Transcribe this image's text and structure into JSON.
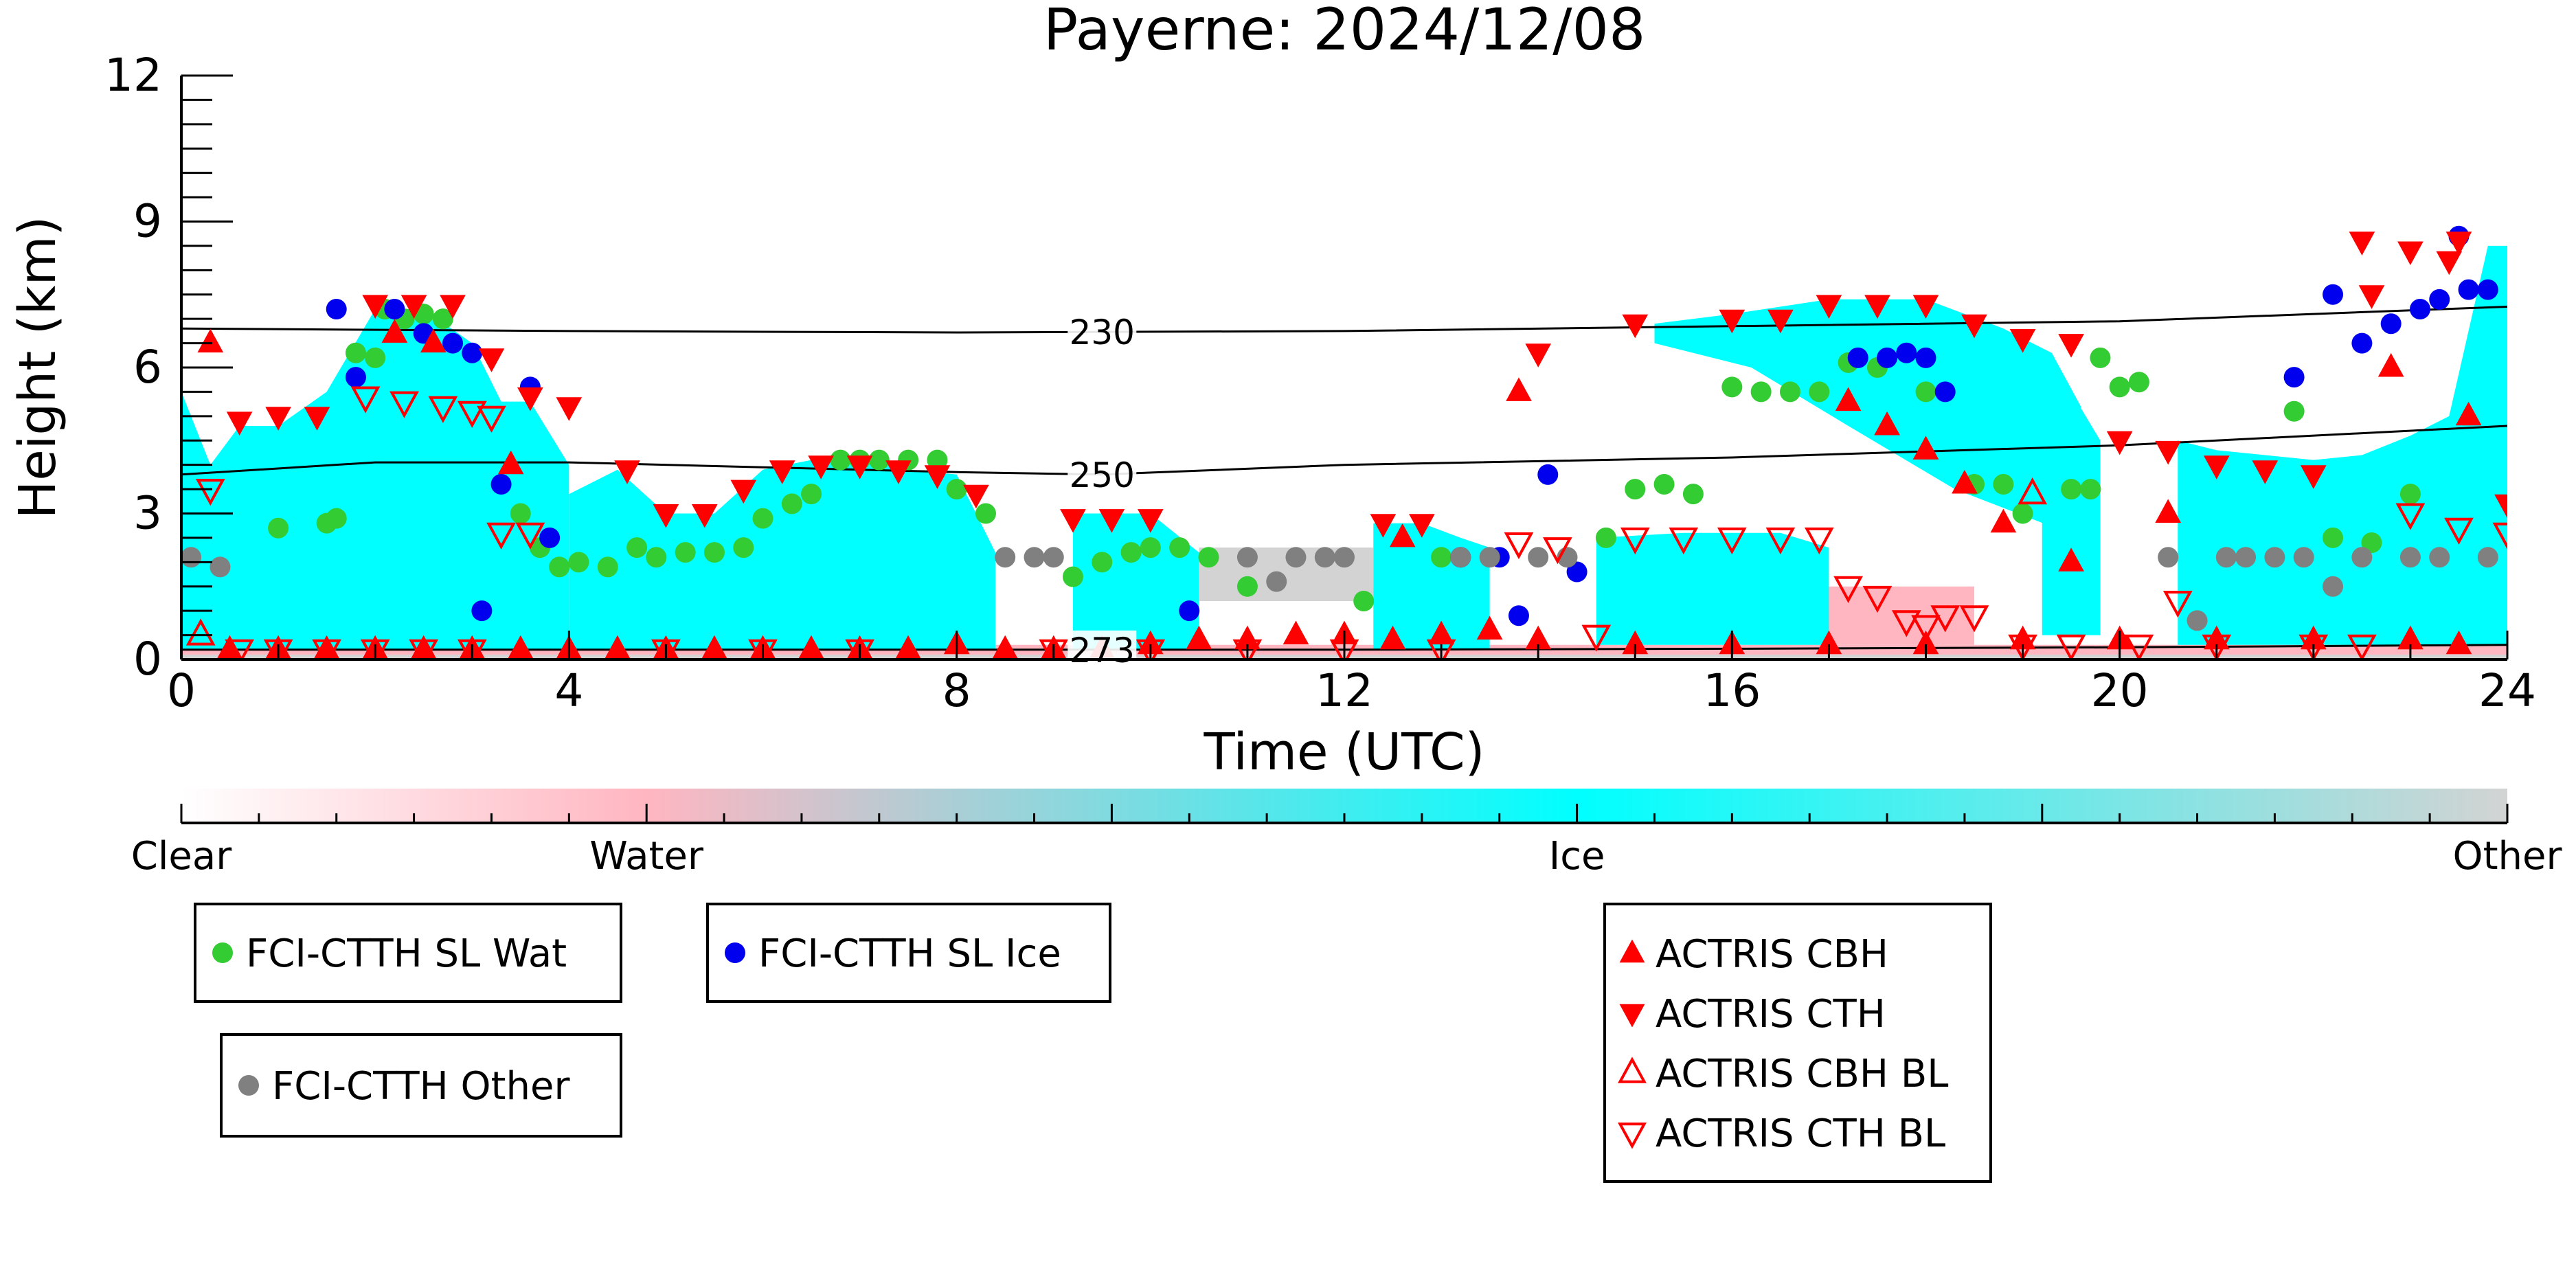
{
  "chart_data": {
    "type": "scatter",
    "title": "Payerne: 2024/12/08",
    "xlabel": "Time (UTC)",
    "ylabel": "Height (km)",
    "xlim": [
      0,
      24
    ],
    "ylim": [
      0,
      12
    ],
    "xticks": [
      0,
      4,
      8,
      12,
      16,
      20,
      24
    ],
    "yticks": [
      0,
      3,
      6,
      9,
      12
    ],
    "grid": false,
    "background": {
      "description": "cloud classification curtain",
      "clear_color": "#ffffff",
      "water_color": "#ffb6c1",
      "ice_color": "#00ffff",
      "other_color": "#d3d3d3",
      "ice_regions": [
        {
          "x": [
            0.0,
            0.3,
            0.6,
            1.0,
            1.5,
            2.0,
            2.5,
            3.0,
            3.3,
            3.6,
            4.0,
            4.0,
            0.0
          ],
          "y": [
            5.5,
            4.0,
            4.8,
            4.8,
            5.5,
            7.2,
            7.2,
            6.5,
            5.3,
            5.3,
            4.0,
            0.2,
            0.2
          ]
        },
        {
          "x": [
            4.0,
            4.5,
            5.0,
            5.5,
            6.0,
            6.5,
            7.0,
            7.5,
            8.0,
            8.4,
            8.4,
            4.0
          ],
          "y": [
            3.4,
            3.9,
            3.0,
            3.0,
            3.9,
            4.1,
            4.1,
            3.9,
            3.8,
            2.2,
            0.2,
            0.2
          ]
        },
        {
          "x": [
            9.2,
            10.0,
            10.5,
            10.5,
            9.2
          ],
          "y": [
            3.0,
            3.0,
            2.2,
            0.2,
            0.2
          ]
        },
        {
          "x": [
            12.3,
            12.8,
            13.2,
            13.5,
            13.5,
            12.3
          ],
          "y": [
            2.8,
            2.8,
            2.5,
            2.3,
            0.2,
            0.2
          ]
        },
        {
          "x": [
            14.6,
            15.5,
            16.5,
            17.0,
            17.0,
            14.6
          ],
          "y": [
            2.5,
            2.6,
            2.6,
            2.3,
            0.3,
            0.3
          ]
        },
        {
          "x": [
            15.2,
            16.0,
            17.0,
            18.0,
            18.8,
            19.3,
            19.6,
            19.6,
            18.3,
            17.2,
            16.2,
            15.2
          ],
          "y": [
            6.9,
            7.1,
            7.4,
            7.4,
            6.8,
            6.3,
            5.2,
            2.5,
            3.5,
            4.8,
            6.0,
            6.5
          ]
        },
        {
          "x": [
            19.2,
            19.5,
            19.8,
            19.8,
            19.2
          ],
          "y": [
            5.0,
            5.5,
            4.5,
            0.5,
            0.5
          ]
        },
        {
          "x": [
            20.6,
            21.0,
            21.5,
            22.0,
            22.5,
            23.0,
            23.4,
            23.8,
            24.0,
            24.0,
            20.6
          ],
          "y": [
            4.5,
            4.3,
            4.2,
            4.1,
            4.2,
            4.6,
            5.0,
            8.5,
            8.5,
            0.3,
            0.3
          ]
        }
      ],
      "water_regions": [
        {
          "x": [
            0.3,
            4.0,
            4.0,
            0.3
          ],
          "y": [
            1.8,
            1.8,
            1.0,
            1.0
          ]
        },
        {
          "x": [
            0.0,
            24.0,
            24.0,
            0.0
          ],
          "y": [
            0.3,
            0.3,
            0.05,
            0.05
          ]
        },
        {
          "x": [
            16.8,
            18.5,
            18.5,
            16.8
          ],
          "y": [
            1.5,
            1.5,
            0.3,
            0.3
          ]
        }
      ],
      "other_regions": [
        {
          "x": [
            10.5,
            12.3,
            12.3,
            10.5
          ],
          "y": [
            2.3,
            2.3,
            1.2,
            1.2
          ]
        },
        {
          "x": [
            0.0,
            24.0,
            24.0,
            0.0
          ],
          "y": [
            0.1,
            0.1,
            0.0,
            0.0
          ]
        }
      ]
    },
    "contours": [
      {
        "label": "230",
        "label_at": 9.5,
        "x": [
          0,
          4,
          8,
          12,
          16,
          20,
          24
        ],
        "y": [
          6.8,
          6.75,
          6.72,
          6.75,
          6.85,
          6.95,
          7.25
        ]
      },
      {
        "label": "250",
        "label_at": 9.5,
        "x": [
          0,
          2,
          4,
          6,
          8,
          9.5,
          12,
          16,
          20,
          24
        ],
        "y": [
          3.8,
          4.05,
          4.05,
          3.95,
          3.85,
          3.8,
          4.0,
          4.15,
          4.4,
          4.8
        ]
      },
      {
        "label": "273",
        "label_at": 9.5,
        "x": [
          0,
          4,
          8,
          12,
          16,
          20,
          24
        ],
        "y": [
          0.2,
          0.2,
          0.2,
          0.2,
          0.22,
          0.25,
          0.3
        ]
      }
    ],
    "colorbar": {
      "labels": [
        "Clear",
        "Water",
        "Ice",
        "Other"
      ],
      "positions": [
        0,
        1,
        3,
        5
      ],
      "stops": [
        {
          "pos": 0,
          "color": "#ffffff"
        },
        {
          "pos": 1,
          "color": "#ffb6c1"
        },
        {
          "pos": 3,
          "color": "#00ffff"
        },
        {
          "pos": 5,
          "color": "#d3d3d3"
        }
      ]
    },
    "series": [
      {
        "name": "FCI-CTTH SL Wat",
        "marker": "circle",
        "color": "#33cc33",
        "x": [
          1.0,
          1.5,
          1.6,
          1.8,
          2.0,
          2.1,
          2.3,
          2.5,
          2.7,
          3.5,
          3.7,
          3.9,
          4.1,
          4.4,
          4.7,
          4.9,
          5.2,
          5.5,
          5.8,
          6.0,
          6.3,
          6.5,
          6.8,
          7.0,
          7.2,
          7.5,
          7.8,
          8.0,
          8.3,
          9.2,
          9.5,
          9.8,
          10.0,
          10.3,
          10.6,
          11.0,
          12.2,
          13.0,
          14.7,
          15.0,
          15.3,
          15.6,
          16.0,
          16.3,
          16.6,
          16.9,
          17.2,
          17.5,
          18.0,
          18.5,
          18.8,
          19.0,
          19.5,
          19.7,
          20.0,
          20.2,
          21.8,
          22.2,
          22.6,
          23.0,
          19.8
        ],
        "y": [
          2.7,
          2.8,
          2.9,
          6.3,
          6.2,
          7.2,
          7.0,
          7.1,
          7.0,
          3.0,
          2.3,
          1.9,
          2.0,
          1.9,
          2.3,
          2.1,
          2.2,
          2.2,
          2.3,
          2.9,
          3.2,
          3.4,
          4.1,
          4.1,
          4.1,
          4.1,
          4.1,
          3.5,
          3.0,
          1.7,
          2.0,
          2.2,
          2.3,
          2.3,
          2.1,
          1.5,
          1.2,
          2.1,
          2.5,
          3.5,
          3.6,
          3.4,
          5.6,
          5.5,
          5.5,
          5.5,
          6.1,
          6.0,
          5.5,
          3.6,
          3.6,
          3.0,
          3.5,
          3.5,
          5.6,
          5.7,
          5.1,
          2.5,
          2.4,
          3.4,
          6.2
        ],
        "count_note": "approximate"
      },
      {
        "name": "FCI-CTTH SL Ice",
        "marker": "circle",
        "color": "#0000ee",
        "x": [
          1.6,
          1.8,
          2.2,
          2.5,
          2.8,
          3.0,
          3.1,
          3.3,
          3.6,
          3.8,
          10.4,
          13.2,
          13.6,
          13.8,
          14.1,
          14.4,
          17.3,
          17.6,
          17.8,
          18.0,
          18.2,
          21.8,
          22.2,
          22.5,
          22.8,
          23.1,
          23.3,
          23.5,
          23.6,
          23.8
        ],
        "y": [
          7.2,
          5.8,
          7.2,
          6.7,
          6.5,
          6.3,
          1.0,
          3.6,
          5.6,
          2.5,
          1.0,
          2.1,
          2.1,
          0.9,
          3.8,
          1.8,
          6.2,
          6.2,
          6.3,
          6.2,
          5.5,
          5.8,
          7.5,
          6.5,
          6.9,
          7.2,
          7.4,
          8.7,
          7.6,
          7.6
        ]
      },
      {
        "name": "FCI-CTTH Other",
        "marker": "circle",
        "color": "#808080",
        "x": [
          0.1,
          0.4,
          8.5,
          8.8,
          9.0,
          11.0,
          11.3,
          11.5,
          11.8,
          12.0,
          13.2,
          13.5,
          14.0,
          14.3,
          20.5,
          20.8,
          21.1,
          21.3,
          21.6,
          21.9,
          22.2,
          22.5,
          23.0,
          23.3,
          23.8
        ],
        "y": [
          2.1,
          1.9,
          2.1,
          2.1,
          2.1,
          2.1,
          1.6,
          2.1,
          2.1,
          2.1,
          2.1,
          2.1,
          2.1,
          2.1,
          2.1,
          0.8,
          2.1,
          2.1,
          2.1,
          2.1,
          1.5,
          2.1,
          2.1,
          2.1,
          2.1
        ]
      },
      {
        "name": "ACTRIS CBH",
        "marker": "triangle-up-filled",
        "color": "#ff0000",
        "x": [
          0.5,
          1.0,
          1.5,
          2.0,
          2.5,
          3.0,
          3.5,
          4.0,
          4.5,
          5.0,
          5.5,
          6.0,
          6.5,
          7.0,
          7.5,
          8.0,
          8.5,
          9.0,
          9.5,
          10.0,
          10.5,
          11.0,
          11.5,
          12.0,
          12.5,
          13.0,
          13.5,
          14.0,
          15.0,
          16.0,
          17.0,
          18.0,
          19.0,
          20.0,
          21.0,
          22.0,
          23.0,
          23.5,
          0.3,
          2.2,
          2.6,
          3.4,
          12.6,
          13.8,
          17.2,
          17.6,
          18.0,
          18.4,
          18.8,
          19.5,
          20.5,
          22.8,
          23.6
        ],
        "y": [
          0.2,
          0.2,
          0.2,
          0.2,
          0.2,
          0.2,
          0.2,
          0.2,
          0.2,
          0.2,
          0.2,
          0.2,
          0.2,
          0.2,
          0.2,
          0.3,
          0.2,
          0.2,
          0.2,
          0.3,
          0.4,
          0.4,
          0.5,
          0.5,
          0.4,
          0.5,
          0.6,
          0.4,
          0.3,
          0.3,
          0.3,
          0.3,
          0.4,
          0.4,
          0.4,
          0.4,
          0.4,
          0.3,
          6.5,
          6.7,
          6.5,
          4.0,
          2.5,
          5.5,
          5.3,
          4.8,
          4.3,
          3.6,
          2.8,
          2.0,
          3.0,
          6.0,
          5.0
        ]
      },
      {
        "name": "ACTRIS CTH",
        "marker": "triangle-down-filled",
        "color": "#ff0000",
        "x": [
          0.6,
          1.0,
          1.4,
          2.0,
          2.4,
          2.8,
          3.2,
          3.6,
          4.0,
          4.6,
          5.0,
          5.4,
          5.8,
          6.2,
          6.6,
          7.0,
          7.4,
          7.8,
          8.2,
          9.2,
          9.6,
          10.0,
          12.4,
          12.8,
          14.0,
          15.0,
          16.0,
          16.5,
          17.0,
          17.5,
          18.0,
          18.5,
          19.0,
          19.5,
          20.0,
          20.5,
          21.0,
          21.5,
          22.0,
          22.5,
          23.0,
          23.5,
          24.0,
          22.6,
          23.4
        ],
        "y": [
          4.9,
          5.0,
          5.0,
          7.3,
          7.3,
          7.3,
          6.2,
          5.4,
          5.2,
          3.9,
          3.0,
          3.0,
          3.5,
          3.9,
          4.0,
          4.0,
          3.9,
          3.8,
          3.4,
          2.9,
          2.9,
          2.9,
          2.8,
          2.8,
          6.3,
          6.9,
          7.0,
          7.0,
          7.3,
          7.3,
          7.3,
          6.9,
          6.6,
          6.5,
          4.5,
          4.3,
          4.0,
          3.9,
          3.8,
          8.6,
          8.4,
          8.6,
          3.2,
          7.5,
          8.2
        ]
      },
      {
        "name": "ACTRIS CBH BL",
        "marker": "triangle-up-open",
        "color": "#ff0000",
        "x": [
          0.2,
          19.1
        ],
        "y": [
          0.5,
          3.4
        ]
      },
      {
        "name": "ACTRIS CTH BL",
        "marker": "triangle-down-open",
        "color": "#ff0000",
        "x": [
          0.3,
          0.6,
          1.0,
          1.5,
          2.0,
          2.5,
          3.0,
          3.3,
          3.6,
          5.0,
          6.0,
          7.0,
          9.0,
          10.0,
          11.0,
          12.0,
          13.0,
          13.8,
          14.2,
          14.6,
          15.0,
          15.5,
          16.0,
          16.5,
          16.9,
          17.2,
          17.5,
          17.8,
          18.0,
          18.2,
          18.5,
          19.0,
          19.5,
          20.2,
          20.6,
          21.0,
          22.0,
          22.5,
          23.0,
          23.5,
          24.0,
          1.9,
          2.3,
          2.7,
          3.0,
          3.2
        ],
        "y": [
          3.5,
          0.2,
          0.2,
          0.2,
          0.2,
          0.2,
          0.2,
          2.6,
          2.6,
          0.2,
          0.2,
          0.2,
          0.2,
          0.2,
          0.2,
          0.2,
          0.2,
          2.4,
          2.3,
          0.5,
          2.5,
          2.5,
          2.5,
          2.5,
          2.5,
          1.5,
          1.3,
          0.8,
          0.7,
          0.9,
          0.9,
          0.3,
          0.3,
          0.3,
          1.2,
          0.3,
          0.3,
          0.3,
          3.0,
          2.7,
          2.6,
          5.4,
          5.3,
          5.2,
          5.1,
          5.0
        ]
      }
    ],
    "legends": [
      {
        "entries": [
          "FCI-CTTH SL Wat"
        ]
      },
      {
        "entries": [
          "FCI-CTTH SL Ice"
        ]
      },
      {
        "entries": [
          "FCI-CTTH Other"
        ]
      },
      {
        "entries": [
          "ACTRIS CBH",
          "ACTRIS CTH",
          "ACTRIS CBH BL",
          "ACTRIS CTH BL"
        ]
      }
    ]
  }
}
